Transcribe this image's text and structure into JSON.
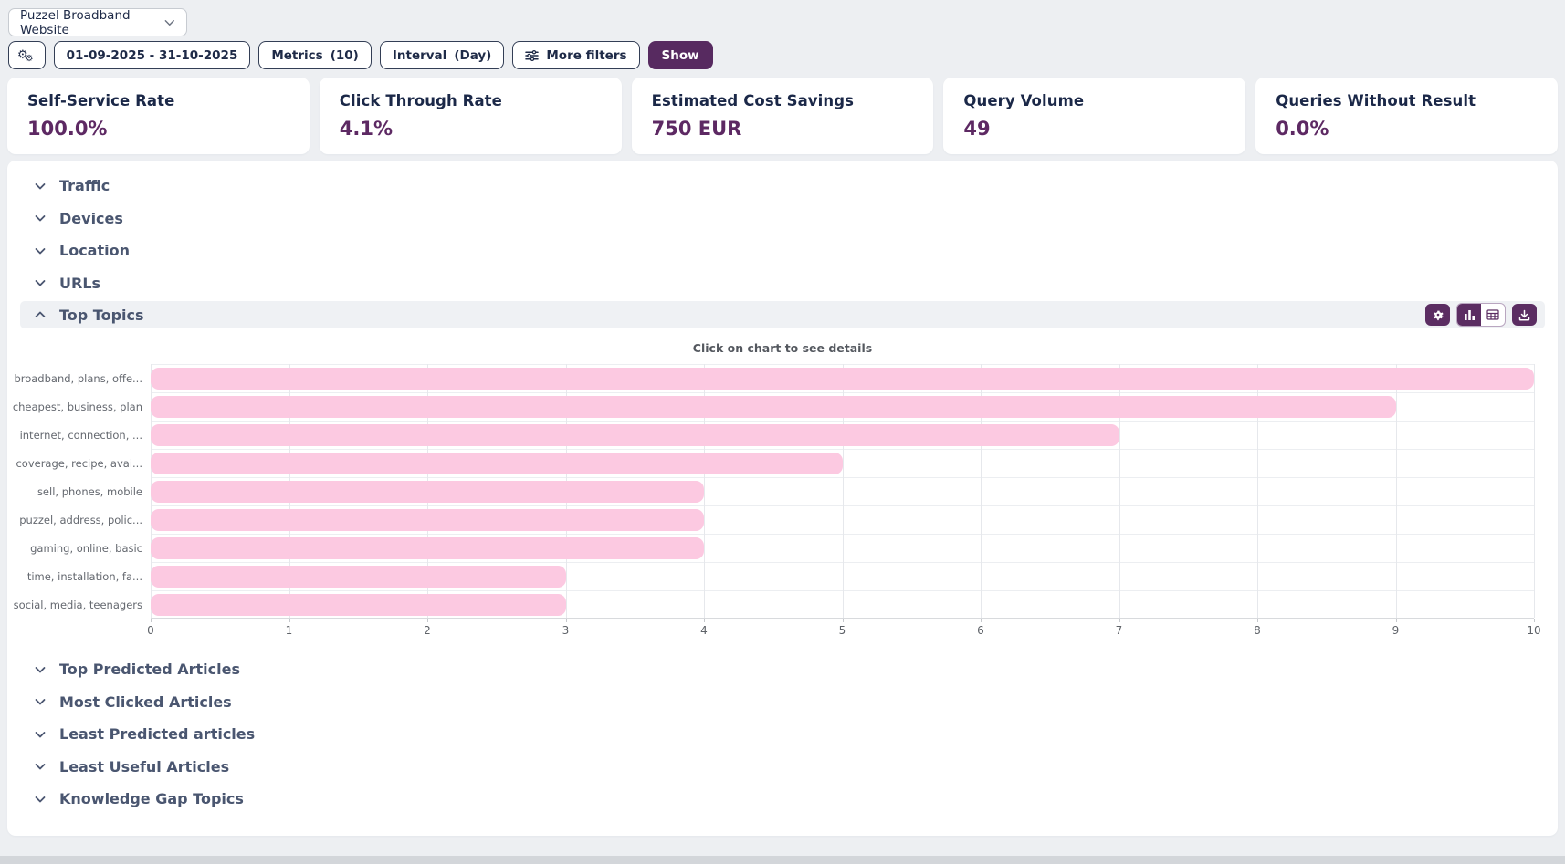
{
  "header": {
    "site_selector": {
      "value": "Puzzel Broadband Website"
    },
    "filters": {
      "settings_icon": "double-gear-icon",
      "date_range": "01-09-2025 - 31-10-2025",
      "metrics_label": "Metrics",
      "metrics_value": "(10)",
      "interval_label": "Interval",
      "interval_value": "(Day)",
      "more_filters_label": "More filters",
      "show_label": "Show"
    }
  },
  "kpis": [
    {
      "label": "Self-Service Rate",
      "value": "100.0%"
    },
    {
      "label": "Click Through Rate",
      "value": "4.1%"
    },
    {
      "label": "Estimated Cost Savings",
      "value": "750 EUR"
    },
    {
      "label": "Query Volume",
      "value": "49"
    },
    {
      "label": "Queries Without Result",
      "value": "0.0%"
    }
  ],
  "sections_above": [
    {
      "label": "Traffic",
      "state": "collapsed"
    },
    {
      "label": "Devices",
      "state": "collapsed"
    },
    {
      "label": "Location",
      "state": "collapsed"
    },
    {
      "label": "URLs",
      "state": "collapsed"
    }
  ],
  "top_topics": {
    "label": "Top Topics",
    "state": "expanded",
    "hint": "Click on chart to see details",
    "toolbar_icons": [
      "settings-icon",
      "bar-chart-icon",
      "table-icon",
      "download-icon"
    ],
    "selected_view": "bar-chart"
  },
  "sections_below": [
    {
      "label": "Top Predicted Articles",
      "state": "collapsed"
    },
    {
      "label": "Most Clicked Articles",
      "state": "collapsed"
    },
    {
      "label": "Least Predicted articles",
      "state": "collapsed"
    },
    {
      "label": "Least Useful Articles",
      "state": "collapsed"
    },
    {
      "label": "Knowledge Gap Topics",
      "state": "collapsed"
    }
  ],
  "chart_data": {
    "type": "bar",
    "orientation": "horizontal",
    "title": "Top Topics",
    "annotation": "Click on chart to see details",
    "categories": [
      "broadband, plans, offe...",
      "cheapest, business, plan",
      "internet, connection, ...",
      "coverage, recipe, avai...",
      "sell, phones, mobile",
      "puzzel, address, polic...",
      "gaming, online, basic",
      "time, installation, fa...",
      "social, media, teenagers"
    ],
    "values": [
      10,
      9,
      7,
      5,
      4,
      4,
      4,
      3,
      3
    ],
    "xlim": [
      0,
      10
    ],
    "x_ticks": [
      0,
      1,
      2,
      3,
      4,
      5,
      6,
      7,
      8,
      9,
      10
    ],
    "grid": true,
    "legend": false,
    "bar_color": "#fcc9e1"
  },
  "colors": {
    "accent_purple": "#572a60",
    "toolbar_purple": "#5b2d62",
    "value_purple": "#5d2963",
    "heading_navy": "#1b2848",
    "section_text": "#4a5670",
    "bar_pink": "#fcc9e1",
    "page_bg": "#edeff2",
    "topics_row_bg": "#eff1f4"
  }
}
